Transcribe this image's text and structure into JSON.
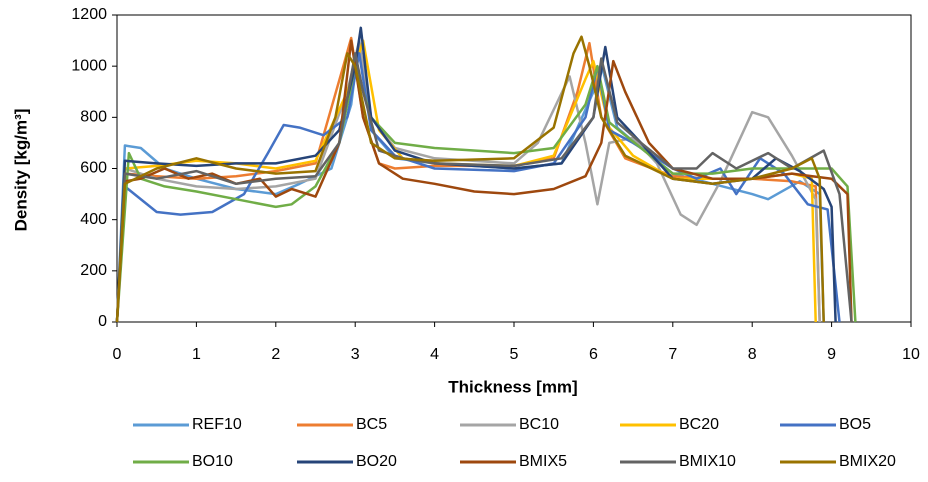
{
  "chart_data": {
    "type": "line",
    "x_label": "Thickness [mm]",
    "y_label": "Density [kg/m³]",
    "xlim": [
      0,
      10
    ],
    "ylim": [
      0,
      1200
    ],
    "xticks": [
      0,
      1,
      2,
      3,
      4,
      5,
      6,
      7,
      8,
      9,
      10
    ],
    "yticks": [
      0,
      200,
      400,
      600,
      800,
      1000,
      1200
    ],
    "grid": false,
    "legend": "bottom",
    "series": [
      {
        "name": "REF10",
        "color": "#5B9BD5",
        "x": [
          0,
          0.1,
          0.3,
          0.6,
          1,
          1.5,
          2,
          2.3,
          2.7,
          2.95,
          3.05,
          3.2,
          3.5,
          4,
          5,
          5.6,
          6.0,
          6.1,
          6.3,
          6.6,
          7,
          7.5,
          8,
          8.2,
          8.6,
          8.85,
          8.9
        ],
        "values": [
          0,
          690,
          680,
          600,
          560,
          520,
          500,
          540,
          600,
          850,
          1100,
          750,
          640,
          620,
          600,
          620,
          900,
          1010,
          760,
          680,
          580,
          540,
          500,
          480,
          550,
          500,
          0
        ]
      },
      {
        "name": "BC5",
        "color": "#ED7D31",
        "x": [
          0,
          0.1,
          0.5,
          1,
          1.5,
          2,
          2.5,
          2.85,
          2.95,
          3.1,
          3.3,
          3.5,
          4,
          5,
          5.5,
          5.8,
          5.95,
          6.1,
          6.4,
          7,
          7.5,
          8,
          8.5,
          8.8,
          8.85
        ],
        "values": [
          0,
          580,
          570,
          560,
          570,
          590,
          620,
          1000,
          1110,
          800,
          620,
          600,
          610,
          610,
          640,
          900,
          1090,
          800,
          640,
          570,
          560,
          560,
          550,
          530,
          0
        ]
      },
      {
        "name": "BC10",
        "color": "#A5A5A5",
        "x": [
          0,
          0.1,
          0.5,
          1,
          1.5,
          2,
          2.5,
          2.9,
          3.05,
          3.2,
          3.5,
          4,
          5,
          5.3,
          5.7,
          5.9,
          6.05,
          6.2,
          6.5,
          6.8,
          7.1,
          7.3,
          7.6,
          8,
          8.2,
          8.5,
          8.8,
          8.85
        ],
        "values": [
          0,
          600,
          560,
          530,
          520,
          530,
          560,
          900,
          1100,
          800,
          680,
          640,
          620,
          700,
          960,
          700,
          460,
          700,
          720,
          620,
          420,
          380,
          550,
          820,
          800,
          650,
          480,
          0
        ]
      },
      {
        "name": "BC20",
        "color": "#FFC000",
        "x": [
          0,
          0.1,
          0.5,
          1,
          1.5,
          2,
          2.5,
          2.9,
          3.1,
          3.3,
          3.6,
          4,
          5,
          5.5,
          5.9,
          6.0,
          6.2,
          6.5,
          7,
          7.5,
          8,
          8.5,
          8.75,
          8.8
        ],
        "values": [
          0,
          600,
          610,
          630,
          620,
          600,
          630,
          900,
          1100,
          750,
          640,
          620,
          610,
          650,
          950,
          1020,
          760,
          650,
          560,
          560,
          560,
          580,
          560,
          0
        ]
      },
      {
        "name": "BO5",
        "color": "#4472C4",
        "x": [
          0,
          0.1,
          0.5,
          0.8,
          1.2,
          1.6,
          1.9,
          2.1,
          2.3,
          2.6,
          2.9,
          3.05,
          3.2,
          3.5,
          4,
          5,
          5.5,
          5.9,
          6.05,
          6.2,
          6.5,
          7,
          7.3,
          7.6,
          7.8,
          8.1,
          8.4,
          8.7,
          8.95,
          9.1
        ],
        "values": [
          0,
          530,
          430,
          420,
          430,
          500,
          660,
          770,
          760,
          730,
          800,
          1050,
          750,
          650,
          600,
          590,
          620,
          800,
          1000,
          750,
          700,
          600,
          560,
          600,
          500,
          640,
          580,
          460,
          440,
          0
        ]
      },
      {
        "name": "BO10",
        "color": "#70AD47",
        "x": [
          0,
          0.15,
          0.3,
          0.6,
          1,
          1.5,
          2,
          2.2,
          2.5,
          2.8,
          3.0,
          3.2,
          3.5,
          4,
          5,
          5.5,
          5.9,
          6.05,
          6.2,
          6.6,
          7,
          7.5,
          8,
          8.5,
          9,
          9.2,
          9.3
        ],
        "values": [
          0,
          660,
          560,
          530,
          510,
          480,
          450,
          460,
          530,
          700,
          1000,
          800,
          700,
          680,
          660,
          680,
          850,
          1000,
          780,
          680,
          580,
          580,
          600,
          600,
          600,
          530,
          0
        ]
      },
      {
        "name": "BO20",
        "color": "#264478",
        "x": [
          0,
          0.1,
          0.5,
          1,
          1.5,
          2,
          2.5,
          2.8,
          3.0,
          3.07,
          3.2,
          3.5,
          4,
          5,
          5.6,
          6.0,
          6.15,
          6.3,
          6.6,
          7,
          7.5,
          8,
          8.3,
          8.6,
          8.9,
          9.0,
          9.05
        ],
        "values": [
          0,
          630,
          620,
          610,
          620,
          620,
          650,
          750,
          1000,
          1150,
          800,
          670,
          620,
          600,
          620,
          800,
          1075,
          800,
          700,
          560,
          540,
          560,
          640,
          590,
          520,
          450,
          0
        ]
      },
      {
        "name": "BMIX5",
        "color": "#9E480E",
        "x": [
          0,
          0.1,
          0.3,
          0.6,
          0.9,
          1.2,
          1.5,
          1.8,
          2.0,
          2.2,
          2.5,
          2.8,
          2.95,
          3.1,
          3.3,
          3.6,
          4,
          4.5,
          5,
          5.5,
          5.9,
          6.1,
          6.25,
          6.4,
          6.7,
          7,
          7.5,
          8,
          8.5,
          9,
          9.2,
          9.25
        ],
        "values": [
          0,
          550,
          560,
          600,
          560,
          580,
          540,
          560,
          490,
          520,
          490,
          700,
          1100,
          800,
          620,
          560,
          540,
          510,
          500,
          520,
          570,
          700,
          1020,
          900,
          700,
          600,
          560,
          560,
          580,
          560,
          500,
          0
        ]
      },
      {
        "name": "BMIX10",
        "color": "#636363",
        "x": [
          0,
          0.1,
          0.5,
          1,
          1.5,
          2,
          2.5,
          2.8,
          3.0,
          3.1,
          3.3,
          3.6,
          4,
          5,
          5.6,
          6.0,
          6.1,
          6.3,
          6.6,
          7,
          7.3,
          7.5,
          7.8,
          8.2,
          8.5,
          8.9,
          9.1,
          9.25
        ],
        "values": [
          0,
          580,
          560,
          590,
          540,
          560,
          570,
          700,
          1050,
          900,
          670,
          640,
          620,
          610,
          640,
          800,
          1030,
          780,
          700,
          600,
          600,
          660,
          600,
          660,
          600,
          670,
          500,
          0
        ]
      },
      {
        "name": "BMIX20",
        "color": "#997300",
        "x": [
          0,
          0.1,
          0.5,
          1,
          1.5,
          2,
          2.5,
          2.75,
          2.9,
          3.0,
          3.2,
          3.5,
          4,
          5,
          5.5,
          5.75,
          5.85,
          5.95,
          6.1,
          6.4,
          7,
          7.5,
          8,
          8.5,
          8.75,
          8.85,
          8.9
        ],
        "values": [
          0,
          540,
          600,
          640,
          600,
          580,
          590,
          800,
          1050,
          1000,
          700,
          640,
          630,
          640,
          760,
          1050,
          1115,
          1000,
          800,
          650,
          560,
          540,
          560,
          600,
          640,
          560,
          0
        ]
      }
    ]
  }
}
